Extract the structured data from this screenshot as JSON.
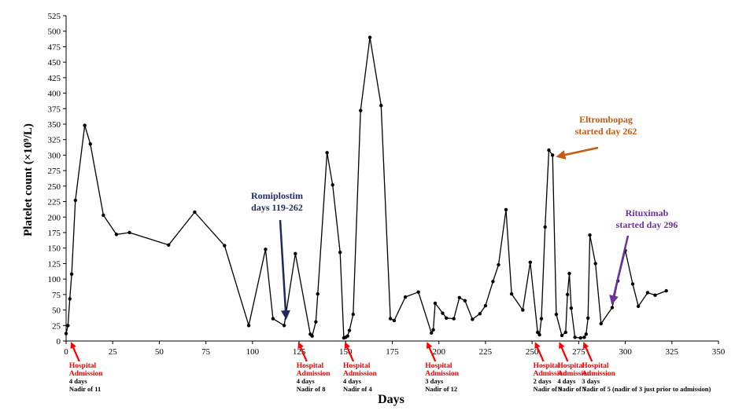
{
  "chart_data": {
    "type": "line",
    "xlabel": "Days",
    "ylabel": "Platelet count (×10⁹/L)",
    "xlim": [
      0,
      350
    ],
    "ylim": [
      0,
      525
    ],
    "xticks": [
      0,
      25,
      50,
      75,
      100,
      125,
      150,
      175,
      200,
      225,
      250,
      275,
      300,
      325,
      350
    ],
    "yticks": [
      0,
      25,
      50,
      75,
      100,
      125,
      150,
      175,
      200,
      225,
      250,
      275,
      300,
      325,
      350,
      375,
      400,
      425,
      450,
      475,
      500,
      525
    ],
    "grid": false,
    "series": [
      {
        "color": "#000000",
        "x": [
          0,
          1,
          2,
          3,
          5,
          10,
          13,
          20,
          27,
          34,
          55,
          69,
          85,
          98,
          107,
          111,
          117,
          123,
          131,
          132,
          134,
          135,
          140,
          143,
          147,
          149,
          150,
          151,
          152,
          154,
          158,
          163,
          169,
          174,
          176,
          182,
          189,
          196,
          197,
          198,
          202,
          204,
          208,
          211,
          214,
          218,
          222,
          225,
          229,
          232,
          236,
          239,
          245,
          249,
          253,
          254,
          255,
          257,
          259,
          261,
          263,
          266,
          268,
          269,
          270,
          271,
          273,
          276,
          278,
          279,
          280,
          281,
          284,
          287,
          293,
          296,
          300,
          304,
          307,
          312,
          316,
          322
        ],
        "values": [
          12,
          25,
          68,
          108,
          227,
          348,
          318,
          203,
          172,
          175,
          155,
          208,
          154,
          25,
          148,
          36,
          25,
          141,
          11,
          8,
          31,
          76,
          304,
          252,
          143,
          5,
          6,
          8,
          17,
          43,
          372,
          490,
          380,
          36,
          33,
          71,
          79,
          13,
          18,
          61,
          45,
          37,
          36,
          70,
          65,
          35,
          44,
          57,
          96,
          123,
          212,
          76,
          50,
          127,
          14,
          10,
          36,
          184,
          308,
          300,
          43,
          9,
          14,
          75,
          109,
          53,
          6,
          5,
          6,
          11,
          37,
          171,
          125,
          28,
          54,
          97,
          146,
          92,
          56,
          78,
          74,
          81
        ]
      }
    ],
    "annotations": [
      {
        "lines": [
          "Romiplostim",
          "days 119-262"
        ],
        "color": "#1f2a5e",
        "points_to_day": 118,
        "points_to_value": 38
      },
      {
        "lines": [
          "Eltrombopag",
          "started day 262"
        ],
        "color": "#c55a11",
        "points_to_day": 264,
        "points_to_value": 298
      },
      {
        "lines": [
          "Rituximab",
          "started day 296"
        ],
        "color": "#7030a0",
        "points_to_day": 293,
        "points_to_value": 62
      }
    ],
    "admissions": [
      {
        "day": 5,
        "title": [
          "Hospital",
          "Admission"
        ],
        "details": [
          "4 days",
          "Nadir of 11"
        ]
      },
      {
        "day": 127,
        "title": [
          "Hospital",
          "Admission"
        ],
        "details": [
          "4 days",
          "Nadir of  8"
        ]
      },
      {
        "day": 152,
        "title": [
          "Hospital",
          "Admission"
        ],
        "details": [
          "4 days",
          "Nadir of 4"
        ]
      },
      {
        "day": 196,
        "title": [
          "Hospital",
          "Admission"
        ],
        "details": [
          "3 days",
          "Nadir of 12"
        ]
      },
      {
        "day": 254,
        "title": [
          "Hospital",
          "Admission"
        ],
        "details": [
          "2 days",
          "Nadir of 9"
        ]
      },
      {
        "day": 267,
        "title": [
          "Hospital",
          "Admission"
        ],
        "details": [
          "4 days",
          "Nadir of 7"
        ]
      },
      {
        "day": 280,
        "title": [
          "Hospital",
          "Admission"
        ],
        "details": [
          "3 days",
          "Nadir of 5 (nadir of 3 just prior to admission)"
        ]
      }
    ]
  }
}
